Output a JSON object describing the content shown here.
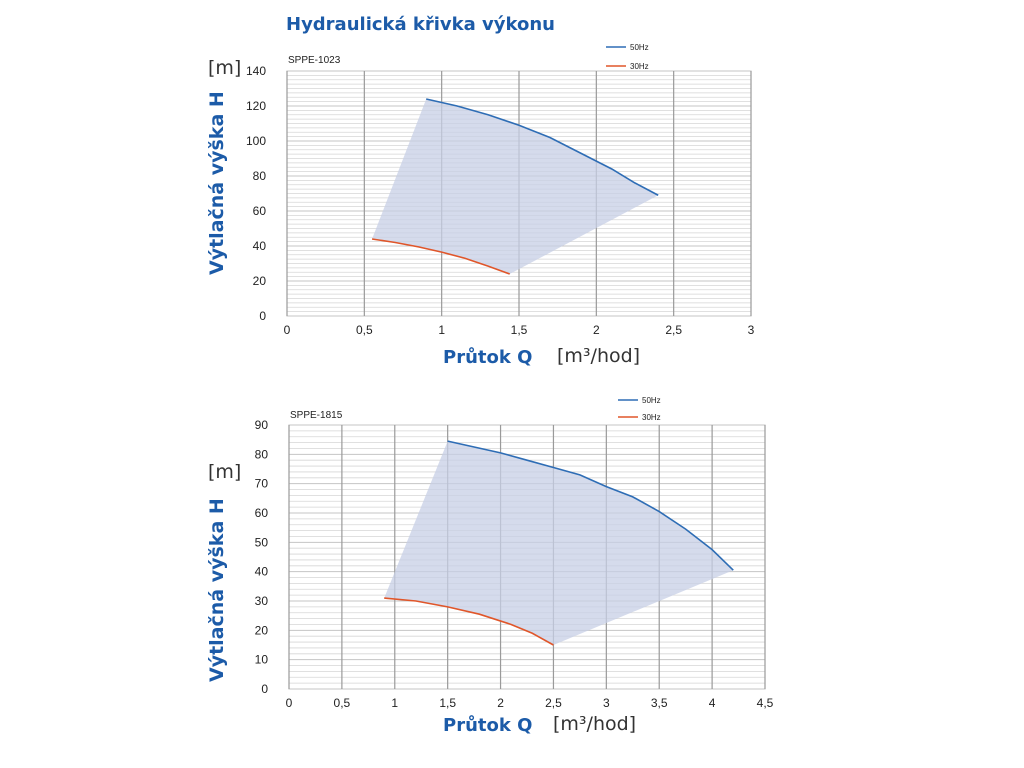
{
  "page_title": "Hydraulická křivka výkonu",
  "colors": {
    "title": "#1c5ba8",
    "curve_50hz": "#2e6db5",
    "curve_30hz": "#e0562a",
    "fill": "#c7cfe6",
    "grid_major": "#9a9a9a",
    "grid_minor": "#d6d6d6"
  },
  "chart_data": [
    {
      "type": "area",
      "model": "SPPE-1023",
      "y_unit": "[m]",
      "ylabel": "Výtlačná výška H",
      "xlabel": "Průtok Q",
      "x_unit": "[m³/hod]",
      "xlim": [
        0,
        3
      ],
      "ylim": [
        0,
        140
      ],
      "x_ticks": [
        0,
        0.5,
        1,
        1.5,
        2,
        2.5,
        3
      ],
      "x_tick_labels": [
        "0",
        "0,5",
        "1",
        "1,5",
        "2",
        "2,5",
        "3"
      ],
      "y_ticks": [
        0,
        20,
        40,
        60,
        80,
        100,
        120,
        140
      ],
      "y_tick_labels": [
        "0",
        "20",
        "40",
        "60",
        "80",
        "100",
        "120",
        "140"
      ],
      "grid": true,
      "legend_position": "top-right",
      "series": [
        {
          "name": "50Hz",
          "color": "#2e6db5",
          "x": [
            0.9,
            1.1,
            1.3,
            1.5,
            1.7,
            1.9,
            2.1,
            2.25,
            2.4
          ],
          "y": [
            124,
            120,
            115,
            109,
            102,
            93,
            84,
            76,
            69
          ]
        },
        {
          "name": "30Hz",
          "color": "#e0562a",
          "x": [
            0.55,
            0.7,
            0.85,
            1.0,
            1.15,
            1.3,
            1.44
          ],
          "y": [
            44,
            42,
            39.5,
            36.5,
            33,
            28.5,
            24
          ]
        }
      ]
    },
    {
      "type": "area",
      "model": "SPPE-1815",
      "y_unit": "[m]",
      "ylabel": "Výtlačná výška H",
      "xlabel": "Průtok Q",
      "x_unit": "[m³/hod]",
      "xlim": [
        0,
        4.5
      ],
      "ylim": [
        0,
        90
      ],
      "x_ticks": [
        0,
        0.5,
        1,
        1.5,
        2,
        2.5,
        3,
        3.5,
        4,
        4.5
      ],
      "x_tick_labels": [
        "0",
        "0,5",
        "1",
        "1,5",
        "2",
        "2,5",
        "3",
        "3,5",
        "4",
        "4,5"
      ],
      "y_ticks": [
        0,
        10,
        20,
        30,
        40,
        50,
        60,
        70,
        80,
        90
      ],
      "y_tick_labels": [
        "0",
        "10",
        "20",
        "30",
        "40",
        "50",
        "60",
        "70",
        "80",
        "90"
      ],
      "grid": true,
      "legend_position": "top-right",
      "series": [
        {
          "name": "50Hz",
          "color": "#2e6db5",
          "x": [
            1.5,
            1.75,
            2.0,
            2.25,
            2.5,
            2.75,
            3.0,
            3.25,
            3.5,
            3.75,
            4.0,
            4.2
          ],
          "y": [
            84.5,
            82.5,
            80.5,
            78,
            75.5,
            73,
            69,
            65.5,
            60.5,
            54.5,
            47.5,
            40.5
          ]
        },
        {
          "name": "30Hz",
          "color": "#e0562a",
          "x": [
            0.9,
            1.2,
            1.5,
            1.8,
            2.1,
            2.3,
            2.5
          ],
          "y": [
            31,
            30,
            28,
            25.5,
            22,
            19,
            15
          ]
        }
      ]
    }
  ]
}
